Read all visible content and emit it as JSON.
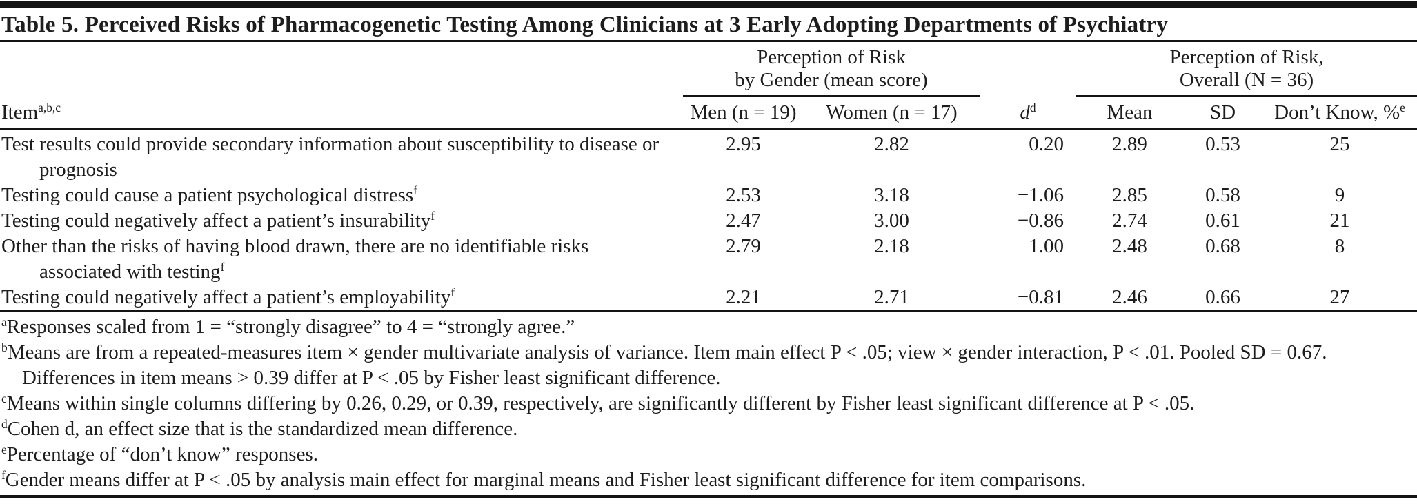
{
  "page": {
    "title": "Table 5. Perceived Risks of Pharmacogenetic Testing Among Clinicians at 3 Early Adopting Departments of Psychiatry"
  },
  "table": {
    "header": {
      "item": "Item",
      "item_sup": "a,b,c",
      "gender_group_line1": "Perception of Risk",
      "gender_group_line2": "by Gender (mean score)",
      "overall_group_line1": "Perception of Risk,",
      "overall_group_line2": "Overall (N = 36)",
      "men": "Men (n = 19)",
      "women": "Women (n = 17)",
      "d": "d",
      "d_sup": "d",
      "mean": "Mean",
      "sd": "SD",
      "dont_know": "Don’t Know, %",
      "dont_know_sup": "e"
    },
    "rows": [
      {
        "item": "Test results could provide secondary information about susceptibility to disease or prognosis",
        "item_sup": "",
        "men": "2.95",
        "women": "2.82",
        "d": "0.20",
        "mean": "2.89",
        "sd": "0.53",
        "dont_know": "25"
      },
      {
        "item": "Testing could cause a patient psychological distress",
        "item_sup": "f",
        "men": "2.53",
        "women": "3.18",
        "d": "−1.06",
        "mean": "2.85",
        "sd": "0.58",
        "dont_know": "9"
      },
      {
        "item": "Testing could negatively affect a patient’s insurability",
        "item_sup": "f",
        "men": "2.47",
        "women": "3.00",
        "d": "−0.86",
        "mean": "2.74",
        "sd": "0.61",
        "dont_know": "21"
      },
      {
        "item": "Other than the risks of having blood drawn, there are no identifiable risks associated with testing",
        "item_sup": "f",
        "men": "2.79",
        "women": "2.18",
        "d": "1.00",
        "mean": "2.48",
        "sd": "0.68",
        "dont_know": "8"
      },
      {
        "item": "Testing could negatively affect a patient’s employability",
        "item_sup": "f",
        "men": "2.21",
        "women": "2.71",
        "d": "−0.81",
        "mean": "2.46",
        "sd": "0.66",
        "dont_know": "27"
      }
    ],
    "footnotes": [
      {
        "marker": "a",
        "text": "Responses scaled from 1 = “strongly disagree” to 4 = “strongly agree.”"
      },
      {
        "marker": "b",
        "text": "Means are from a repeated-measures item × gender multivariate analysis of variance. Item main effect P < .05; view × gender interaction, P < .01. Pooled SD = 0.67. Differences in item means > 0.39 differ at P < .05 by Fisher least significant difference."
      },
      {
        "marker": "c",
        "text": "Means within single columns differing by 0.26, 0.29, or 0.39, respectively, are significantly different by Fisher least significant difference at P < .05."
      },
      {
        "marker": "d",
        "text": "Cohen d, an effect size that is the standardized mean difference."
      },
      {
        "marker": "e",
        "text": "Percentage of “don’t know” responses."
      },
      {
        "marker": "f",
        "text": "Gender means differ at P < .05 by analysis main effect for marginal means and Fisher least significant difference for item comparisons."
      }
    ]
  }
}
